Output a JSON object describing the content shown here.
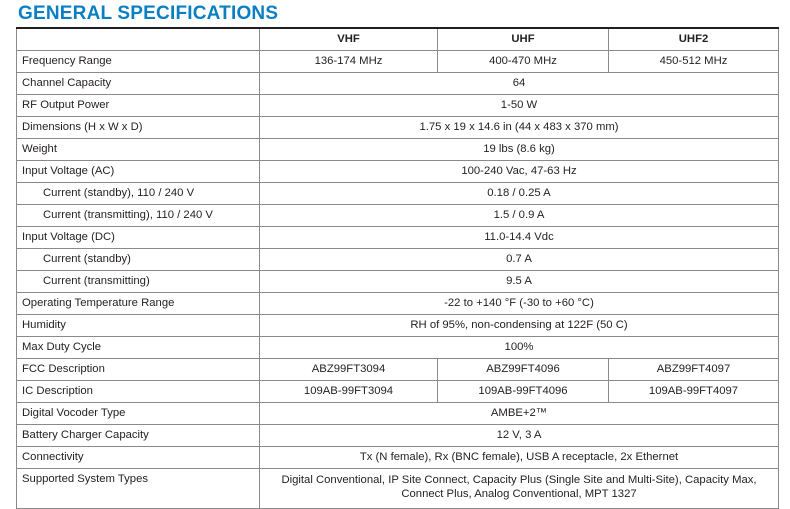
{
  "title": "GENERAL SPECIFICATIONS",
  "columns": [
    "",
    "VHF",
    "UHF",
    "UHF2"
  ],
  "rows": [
    {
      "label": "Frequency Range",
      "values": [
        "136-174 MHz",
        "400-470 MHz",
        "450-512 MHz"
      ]
    },
    {
      "label": "Channel Capacity",
      "value": "64"
    },
    {
      "label": "RF Output Power",
      "value": "1-50 W"
    },
    {
      "label": "Dimensions (H x W x D)",
      "value": "1.75 x 19 x 14.6 in (44 x 483 x 370 mm)"
    },
    {
      "label": "Weight",
      "value": "19 lbs (8.6 kg)"
    },
    {
      "label": "Input Voltage (AC)",
      "value": "100-240 Vac, 47-63 Hz"
    },
    {
      "label": "Current (standby), 110 / 240 V",
      "value": "0.18 / 0.25 A",
      "indent": true
    },
    {
      "label": "Current (transmitting), 110 / 240 V",
      "value": "1.5 / 0.9 A",
      "indent": true
    },
    {
      "label": "Input Voltage (DC)",
      "value": "11.0-14.4 Vdc"
    },
    {
      "label": "Current (standby)",
      "value": "0.7 A",
      "indent": true
    },
    {
      "label": "Current (transmitting)",
      "value": "9.5 A",
      "indent": true
    },
    {
      "label": "Operating Temperature Range",
      "value": "-22 to +140 °F (-30 to +60 °C)"
    },
    {
      "label": "Humidity",
      "value": "RH of 95%, non-condensing at 122F (50 C)"
    },
    {
      "label": "Max Duty Cycle",
      "value": "100%"
    },
    {
      "label": "FCC Description",
      "values": [
        "ABZ99FT3094",
        "ABZ99FT4096",
        "ABZ99FT4097"
      ]
    },
    {
      "label": "IC Description",
      "values": [
        "109AB-99FT3094",
        "109AB-99FT4096",
        "109AB-99FT4097"
      ]
    },
    {
      "label": "Digital Vocoder Type",
      "value": "AMBE+2™"
    },
    {
      "label": "Battery Charger Capacity",
      "value": "12 V, 3 A"
    },
    {
      "label": "Connectivity",
      "value": "Tx (N female), Rx (BNC female), USB A receptacle, 2x Ethernet"
    },
    {
      "label": "Supported System Types",
      "value": "Digital Conventional, IP Site Connect, Capacity Plus (Single Site and Multi-Site), Capacity Max, Connect Plus, Analog Conventional, MPT 1327"
    }
  ],
  "colors": {
    "title": "#0a7fc4",
    "grid": "#8a8a8a",
    "text": "#231f20"
  }
}
